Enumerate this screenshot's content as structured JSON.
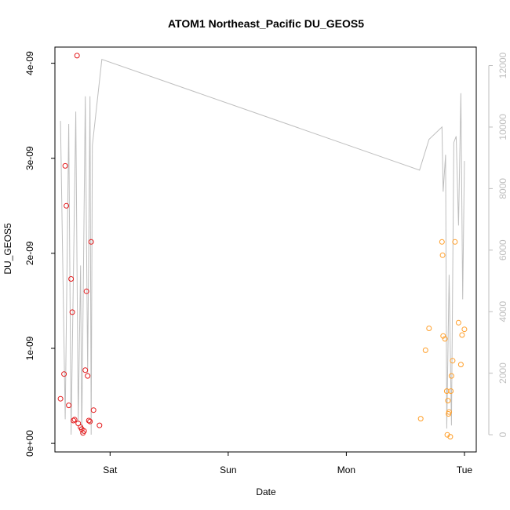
{
  "chart_data": {
    "type": "scatter",
    "title": "ATOM1 Northeast_Pacific DU_GEOS5",
    "xlabel": "Date",
    "ylabel": "DU_GEOS5",
    "x_ticks": [
      {
        "label": "Sat",
        "day": 1.0
      },
      {
        "label": "Sun",
        "day": 2.0
      },
      {
        "label": "Mon",
        "day": 3.0
      },
      {
        "label": "Tue",
        "day": 4.0
      }
    ],
    "xlim_days": [
      0.533,
      4.1
    ],
    "y_ticks": [
      "0e+00",
      "1e-09",
      "2e-09",
      "3e-09",
      "4e-09"
    ],
    "y_tick_values": [
      0,
      1e-09,
      2e-09,
      3e-09,
      4e-09
    ],
    "ylim": [
      -9e-11,
      4.17e-09
    ],
    "y2_ticks": [
      "0",
      "2000",
      "4000",
      "6000",
      "8000",
      "10000",
      "12000"
    ],
    "y2_tick_values": [
      0,
      2000,
      4000,
      6000,
      8000,
      10000,
      12000
    ],
    "y2lim": [
      -560,
      12600
    ],
    "colors": {
      "first_flight": "#e41a1c",
      "second_flight": "#ff9f2a",
      "altitude_line": "#bebebe",
      "axis": "#000000",
      "right_axis": "#bebebe"
    },
    "series": [
      {
        "color": "#e41a1c",
        "points": [
          {
            "x": 0.58,
            "y": 4.7e-10
          },
          {
            "x": 0.61,
            "y": 7.3e-10
          },
          {
            "x": 0.62,
            "y": 2.92e-09
          },
          {
            "x": 0.63,
            "y": 2.5e-09
          },
          {
            "x": 0.65,
            "y": 4e-10
          },
          {
            "x": 0.67,
            "y": 1.73e-09
          },
          {
            "x": 0.68,
            "y": 1.38e-09
          },
          {
            "x": 0.69,
            "y": 2.4e-10
          },
          {
            "x": 0.7,
            "y": 2.5e-10
          },
          {
            "x": 0.72,
            "y": 4.08e-09
          },
          {
            "x": 0.73,
            "y": 2.1e-10
          },
          {
            "x": 0.75,
            "y": 1.7e-10
          },
          {
            "x": 0.76,
            "y": 1.5e-10
          },
          {
            "x": 0.77,
            "y": 1.1e-10
          },
          {
            "x": 0.78,
            "y": 1.3e-10
          },
          {
            "x": 0.79,
            "y": 7.7e-10
          },
          {
            "x": 0.8,
            "y": 1.6e-09
          },
          {
            "x": 0.81,
            "y": 7.1e-10
          },
          {
            "x": 0.82,
            "y": 2.4e-10
          },
          {
            "x": 0.83,
            "y": 2.3e-10
          },
          {
            "x": 0.84,
            "y": 2.12e-09
          },
          {
            "x": 0.86,
            "y": 3.5e-10
          },
          {
            "x": 0.91,
            "y": 1.9e-10
          }
        ]
      },
      {
        "color": "#ff9f2a",
        "points": [
          {
            "x": 3.63,
            "y": 2.6e-10
          },
          {
            "x": 3.67,
            "y": 9.8e-10
          },
          {
            "x": 3.7,
            "y": 1.21e-09
          },
          {
            "x": 3.81,
            "y": 2.12e-09
          },
          {
            "x": 3.815,
            "y": 1.98e-09
          },
          {
            "x": 3.82,
            "y": 1.13e-09
          },
          {
            "x": 3.835,
            "y": 1.1e-09
          },
          {
            "x": 3.85,
            "y": 5.5e-10
          },
          {
            "x": 3.855,
            "y": 9e-11
          },
          {
            "x": 3.86,
            "y": 4.5e-10
          },
          {
            "x": 3.865,
            "y": 3.1e-10
          },
          {
            "x": 3.87,
            "y": 3.3e-10
          },
          {
            "x": 3.88,
            "y": 7e-11
          },
          {
            "x": 3.885,
            "y": 5.5e-10
          },
          {
            "x": 3.89,
            "y": 7.1e-10
          },
          {
            "x": 3.9,
            "y": 8.7e-10
          },
          {
            "x": 3.92,
            "y": 2.12e-09
          },
          {
            "x": 3.95,
            "y": 1.27e-09
          },
          {
            "x": 3.97,
            "y": 8.3e-10
          },
          {
            "x": 3.98,
            "y": 1.14e-09
          },
          {
            "x": 4.0,
            "y": 1.2e-09
          }
        ]
      }
    ],
    "altitude_line": [
      {
        "x": 0.58,
        "y": 10200
      },
      {
        "x": 0.62,
        "y": 500
      },
      {
        "x": 0.65,
        "y": 10100
      },
      {
        "x": 0.67,
        "y": 0
      },
      {
        "x": 0.71,
        "y": 10500
      },
      {
        "x": 0.73,
        "y": 400
      },
      {
        "x": 0.75,
        "y": 5500
      },
      {
        "x": 0.76,
        "y": 0
      },
      {
        "x": 0.79,
        "y": 11000
      },
      {
        "x": 0.81,
        "y": 2000
      },
      {
        "x": 0.83,
        "y": 11000
      },
      {
        "x": 0.84,
        "y": 0
      },
      {
        "x": 0.85,
        "y": 9400
      },
      {
        "x": 0.93,
        "y": 12200
      },
      {
        "x": 3.62,
        "y": 8600
      },
      {
        "x": 3.7,
        "y": 9600
      },
      {
        "x": 3.81,
        "y": 10000
      },
      {
        "x": 3.82,
        "y": 7900
      },
      {
        "x": 3.84,
        "y": 9100
      },
      {
        "x": 3.85,
        "y": 200
      },
      {
        "x": 3.87,
        "y": 5200
      },
      {
        "x": 3.89,
        "y": 300
      },
      {
        "x": 3.91,
        "y": 9500
      },
      {
        "x": 3.93,
        "y": 9700
      },
      {
        "x": 3.95,
        "y": 6800
      },
      {
        "x": 3.97,
        "y": 11100
      },
      {
        "x": 3.985,
        "y": 4400
      },
      {
        "x": 4.0,
        "y": 8900
      }
    ]
  }
}
